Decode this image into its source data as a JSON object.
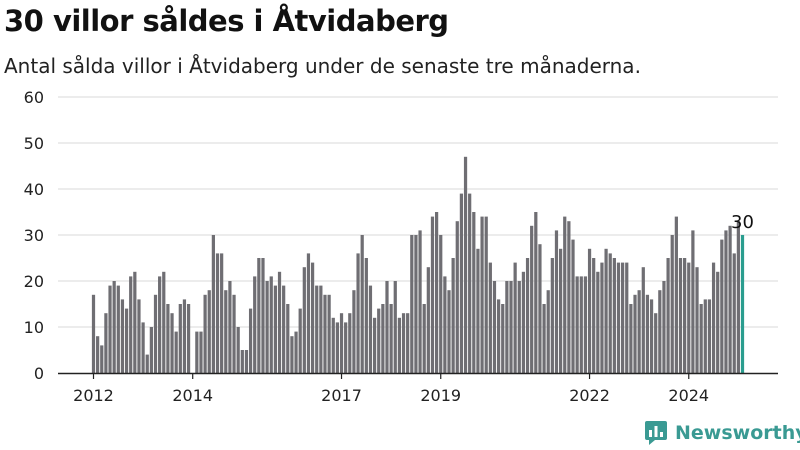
{
  "header": {
    "title": "30 villor såldes i Åtvidaberg",
    "subtitle": "Antal sålda villor i Åtvidaberg under de senaste tre månaderna."
  },
  "brand": {
    "name": "Newsworthy",
    "color": "#3a9a93"
  },
  "colors": {
    "bar": "#6f6e73",
    "highlight": "#2a9d8f",
    "grid": "#d9d9d9"
  },
  "chart_data": {
    "type": "bar",
    "title": "30 villor såldes i Åtvidaberg",
    "subtitle": "Antal sålda villor i Åtvidaberg under de senaste tre månaderna.",
    "ylim": [
      0,
      60
    ],
    "yticks": [
      0,
      10,
      20,
      30,
      40,
      50,
      60
    ],
    "grid": true,
    "x_tick_labels": [
      {
        "label": "2012",
        "index": 0
      },
      {
        "label": "2014",
        "index": 24
      },
      {
        "label": "2017",
        "index": 60
      },
      {
        "label": "2019",
        "index": 84
      },
      {
        "label": "2022",
        "index": 120
      },
      {
        "label": "2024",
        "index": 144
      }
    ],
    "highlight_label": "30",
    "values": [
      17,
      8,
      6,
      13,
      19,
      20,
      19,
      16,
      14,
      21,
      22,
      16,
      11,
      4,
      10,
      17,
      21,
      22,
      15,
      13,
      9,
      15,
      16,
      15,
      0,
      9,
      9,
      17,
      18,
      30,
      26,
      26,
      18,
      20,
      17,
      10,
      5,
      5,
      14,
      21,
      25,
      25,
      20,
      21,
      19,
      22,
      19,
      15,
      8,
      9,
      14,
      23,
      26,
      24,
      19,
      19,
      17,
      17,
      12,
      11,
      13,
      11,
      13,
      18,
      26,
      30,
      25,
      19,
      12,
      14,
      15,
      20,
      15,
      20,
      12,
      13,
      13,
      30,
      30,
      31,
      15,
      23,
      34,
      35,
      30,
      21,
      18,
      25,
      33,
      39,
      47,
      39,
      35,
      27,
      34,
      34,
      24,
      20,
      16,
      15,
      20,
      20,
      24,
      20,
      22,
      25,
      32,
      35,
      28,
      15,
      18,
      25,
      31,
      27,
      34,
      33,
      29,
      21,
      21,
      21,
      27,
      25,
      22,
      24,
      27,
      26,
      25,
      24,
      24,
      24,
      15,
      17,
      18,
      23,
      17,
      16,
      13,
      18,
      20,
      25,
      30,
      34,
      25,
      25,
      24,
      31,
      23,
      15,
      16,
      16,
      24,
      22,
      29,
      31,
      32,
      26,
      33,
      30
    ]
  }
}
